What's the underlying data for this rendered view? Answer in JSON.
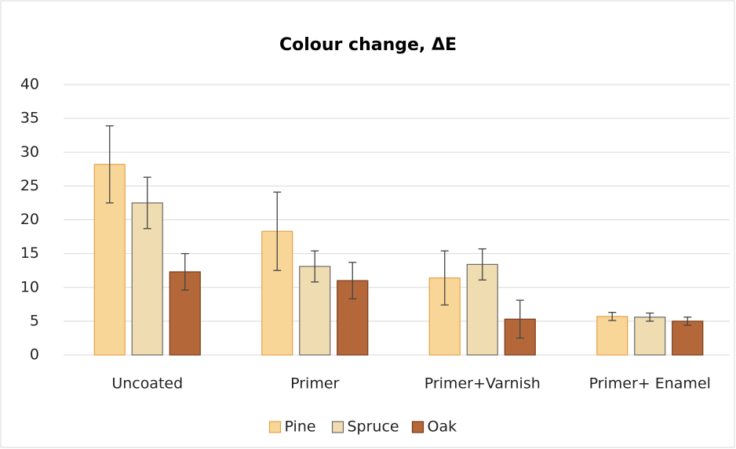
{
  "chart_data": {
    "type": "bar",
    "title": "Colour change, ΔE",
    "categories": [
      "Uncoated",
      "Primer",
      "Primer+Varnish",
      "Primer+ Enamel"
    ],
    "series": [
      {
        "name": "Pine",
        "color": "#f8d698",
        "stroke": "#e8a04a",
        "values": [
          28.2,
          18.3,
          11.4,
          5.7
        ],
        "errors": [
          5.7,
          5.8,
          4.0,
          0.6
        ]
      },
      {
        "name": "Spruce",
        "color": "#efdcb0",
        "stroke": "#6b6b6b",
        "values": [
          22.5,
          13.1,
          13.4,
          5.6
        ],
        "errors": [
          3.8,
          2.3,
          2.3,
          0.6
        ]
      },
      {
        "name": "Oak",
        "color": "#b4683a",
        "stroke": "#7a3a1a",
        "values": [
          12.3,
          11.0,
          5.3,
          5.0
        ],
        "errors": [
          2.7,
          2.7,
          2.8,
          0.6
        ]
      }
    ],
    "ylim": [
      0,
      40
    ],
    "yticks": [
      0,
      5,
      10,
      15,
      20,
      25,
      30,
      35,
      40
    ],
    "grid": true,
    "legend": "bottom"
  }
}
